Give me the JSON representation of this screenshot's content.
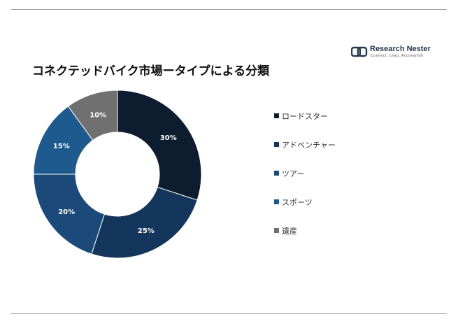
{
  "brand": {
    "name": "Research Nester",
    "tagline": "Connect. Lead. Accomplish",
    "accent": "#2b3a4f"
  },
  "chart_data": {
    "type": "pie",
    "variant": "donut",
    "title": "コネクテッドバイク市場ータイプによる分類",
    "categories": [
      "ロードスター",
      "アドベンチャー",
      "ツアー",
      "スポーツ",
      "遺産"
    ],
    "values": [
      30,
      25,
      20,
      15,
      10
    ],
    "value_labels": [
      "30%",
      "25%",
      "20%",
      "15%",
      "10%"
    ],
    "colors": [
      "#0e1c30",
      "#15365c",
      "#1b4a7a",
      "#1f5a8f",
      "#707070"
    ],
    "legend": "right"
  }
}
